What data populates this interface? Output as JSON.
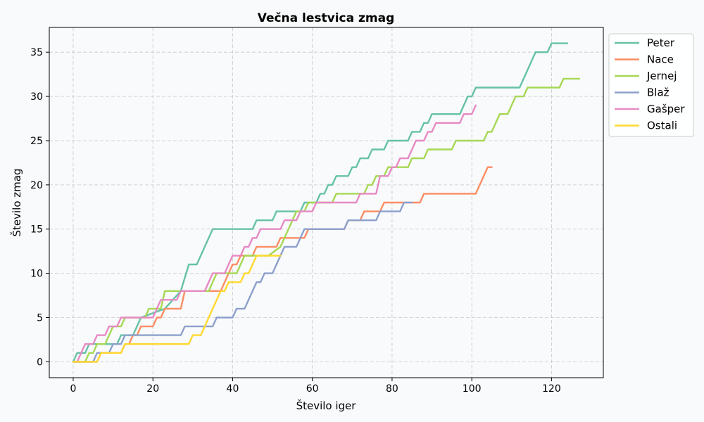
{
  "chart_data": {
    "type": "line",
    "title": "Večna lestvica zmag",
    "xlabel": "Število iger",
    "ylabel": "Število zmag",
    "xlim": [
      -6,
      133
    ],
    "ylim": [
      -1.8,
      37.8
    ],
    "xticks": [
      0,
      20,
      40,
      60,
      80,
      100,
      120
    ],
    "yticks": [
      0,
      5,
      10,
      15,
      20,
      25,
      30,
      35
    ],
    "grid": true,
    "legend_position": "top-right",
    "series": [
      {
        "name": "Peter",
        "color": "#66c2a5",
        "points": [
          [
            0,
            0
          ],
          [
            1,
            1
          ],
          [
            3,
            1
          ],
          [
            4,
            2
          ],
          [
            11,
            2
          ],
          [
            12,
            3
          ],
          [
            15,
            3
          ],
          [
            17,
            5
          ],
          [
            23,
            6
          ],
          [
            27,
            8
          ],
          [
            29,
            11
          ],
          [
            31,
            11
          ],
          [
            35,
            15
          ],
          [
            45,
            15
          ],
          [
            46,
            16
          ],
          [
            50,
            16
          ],
          [
            51,
            17
          ],
          [
            57,
            17
          ],
          [
            58,
            18
          ],
          [
            61,
            18
          ],
          [
            62,
            19
          ],
          [
            63,
            19
          ],
          [
            64,
            20
          ],
          [
            65,
            20
          ],
          [
            66,
            21
          ],
          [
            69,
            21
          ],
          [
            70,
            22
          ],
          [
            71,
            22
          ],
          [
            72,
            23
          ],
          [
            74,
            23
          ],
          [
            75,
            24
          ],
          [
            78,
            24
          ],
          [
            79,
            25
          ],
          [
            84,
            25
          ],
          [
            85,
            26
          ],
          [
            87,
            26
          ],
          [
            88,
            27
          ],
          [
            89,
            27
          ],
          [
            90,
            28
          ],
          [
            97,
            28
          ],
          [
            99,
            30
          ],
          [
            100,
            30
          ],
          [
            101,
            31
          ],
          [
            112,
            31
          ],
          [
            116,
            35
          ],
          [
            119,
            35
          ],
          [
            120,
            36
          ],
          [
            124,
            36
          ]
        ]
      },
      {
        "name": "Nace",
        "color": "#fc8d62",
        "points": [
          [
            0,
            0
          ],
          [
            6,
            0
          ],
          [
            7,
            1
          ],
          [
            12,
            1
          ],
          [
            13,
            2
          ],
          [
            14,
            2
          ],
          [
            15,
            3
          ],
          [
            16,
            3
          ],
          [
            17,
            4
          ],
          [
            20,
            4
          ],
          [
            21,
            5
          ],
          [
            22,
            5
          ],
          [
            23,
            6
          ],
          [
            27,
            6
          ],
          [
            28,
            8
          ],
          [
            37,
            8
          ],
          [
            40,
            11
          ],
          [
            41,
            11
          ],
          [
            42,
            12
          ],
          [
            45,
            12
          ],
          [
            46,
            13
          ],
          [
            51,
            13
          ],
          [
            52,
            14
          ],
          [
            58,
            14
          ],
          [
            59,
            15
          ],
          [
            68,
            15
          ],
          [
            69,
            16
          ],
          [
            72,
            16
          ],
          [
            73,
            17
          ],
          [
            77,
            17
          ],
          [
            78,
            18
          ],
          [
            87,
            18
          ],
          [
            88,
            19
          ],
          [
            101,
            19
          ],
          [
            104,
            22
          ],
          [
            105,
            22
          ]
        ]
      },
      {
        "name": "Jernej",
        "color": "#a6d854",
        "points": [
          [
            0,
            0
          ],
          [
            3,
            0
          ],
          [
            4,
            1
          ],
          [
            5,
            1
          ],
          [
            6,
            2
          ],
          [
            8,
            2
          ],
          [
            10,
            4
          ],
          [
            12,
            4
          ],
          [
            13,
            5
          ],
          [
            18,
            5
          ],
          [
            19,
            6
          ],
          [
            22,
            6
          ],
          [
            23,
            8
          ],
          [
            34,
            8
          ],
          [
            35,
            9
          ],
          [
            36,
            10
          ],
          [
            41,
            10
          ],
          [
            43,
            12
          ],
          [
            49,
            12
          ],
          [
            52,
            13
          ],
          [
            55,
            16
          ],
          [
            56,
            17
          ],
          [
            58,
            17
          ],
          [
            59,
            18
          ],
          [
            65,
            18
          ],
          [
            66,
            19
          ],
          [
            73,
            19
          ],
          [
            74,
            20
          ],
          [
            75,
            20
          ],
          [
            76,
            21
          ],
          [
            78,
            21
          ],
          [
            79,
            22
          ],
          [
            84,
            22
          ],
          [
            85,
            23
          ],
          [
            88,
            23
          ],
          [
            89,
            24
          ],
          [
            95,
            24
          ],
          [
            96,
            25
          ],
          [
            103,
            25
          ],
          [
            104,
            26
          ],
          [
            105,
            26
          ],
          [
            107,
            28
          ],
          [
            109,
            28
          ],
          [
            111,
            30
          ],
          [
            113,
            30
          ],
          [
            114,
            31
          ],
          [
            122,
            31
          ],
          [
            123,
            32
          ],
          [
            127,
            32
          ]
        ]
      },
      {
        "name": "Blaž",
        "color": "#8da0cb",
        "points": [
          [
            0,
            0
          ],
          [
            5,
            0
          ],
          [
            6,
            1
          ],
          [
            9,
            1
          ],
          [
            10,
            2
          ],
          [
            12,
            2
          ],
          [
            13,
            3
          ],
          [
            27,
            3
          ],
          [
            28,
            4
          ],
          [
            35,
            4
          ],
          [
            36,
            5
          ],
          [
            40,
            5
          ],
          [
            41,
            6
          ],
          [
            43,
            6
          ],
          [
            45,
            8
          ],
          [
            46,
            9
          ],
          [
            47,
            9
          ],
          [
            48,
            10
          ],
          [
            50,
            10
          ],
          [
            51,
            11
          ],
          [
            53,
            13
          ],
          [
            56,
            13
          ],
          [
            58,
            15
          ],
          [
            68,
            15
          ],
          [
            69,
            16
          ],
          [
            76,
            16
          ],
          [
            77,
            17
          ],
          [
            82,
            17
          ],
          [
            83,
            18
          ],
          [
            85,
            18
          ]
        ]
      },
      {
        "name": "Gašper",
        "color": "#e78ac3",
        "points": [
          [
            0,
            0
          ],
          [
            1,
            0
          ],
          [
            2,
            1
          ],
          [
            3,
            2
          ],
          [
            5,
            2
          ],
          [
            6,
            3
          ],
          [
            8,
            3
          ],
          [
            9,
            4
          ],
          [
            11,
            4
          ],
          [
            12,
            5
          ],
          [
            20,
            5
          ],
          [
            22,
            7
          ],
          [
            26,
            7
          ],
          [
            27,
            8
          ],
          [
            33,
            8
          ],
          [
            35,
            10
          ],
          [
            38,
            10
          ],
          [
            40,
            12
          ],
          [
            42,
            12
          ],
          [
            43,
            13
          ],
          [
            44,
            13
          ],
          [
            45,
            14
          ],
          [
            46,
            14
          ],
          [
            47,
            15
          ],
          [
            52,
            15
          ],
          [
            53,
            16
          ],
          [
            56,
            16
          ],
          [
            57,
            17
          ],
          [
            60,
            17
          ],
          [
            61,
            18
          ],
          [
            71,
            18
          ],
          [
            72,
            19
          ],
          [
            76,
            19
          ],
          [
            77,
            21
          ],
          [
            79,
            21
          ],
          [
            80,
            22
          ],
          [
            81,
            22
          ],
          [
            82,
            23
          ],
          [
            84,
            23
          ],
          [
            86,
            25
          ],
          [
            88,
            25
          ],
          [
            89,
            26
          ],
          [
            90,
            26
          ],
          [
            91,
            27
          ],
          [
            97,
            27
          ],
          [
            98,
            28
          ],
          [
            100,
            28
          ],
          [
            101,
            29
          ]
        ]
      },
      {
        "name": "Ostali",
        "color": "#ffd92f",
        "points": [
          [
            0,
            0
          ],
          [
            5,
            0
          ],
          [
            6,
            0
          ],
          [
            7,
            1
          ],
          [
            12,
            1
          ],
          [
            13,
            2
          ],
          [
            28,
            2
          ],
          [
            29,
            2
          ],
          [
            30,
            3
          ],
          [
            32,
            3
          ],
          [
            33,
            4
          ],
          [
            37,
            8
          ],
          [
            38,
            8
          ],
          [
            39,
            9
          ],
          [
            42,
            9
          ],
          [
            43,
            10
          ],
          [
            44,
            10
          ],
          [
            46,
            12
          ],
          [
            52,
            12
          ]
        ]
      }
    ]
  }
}
